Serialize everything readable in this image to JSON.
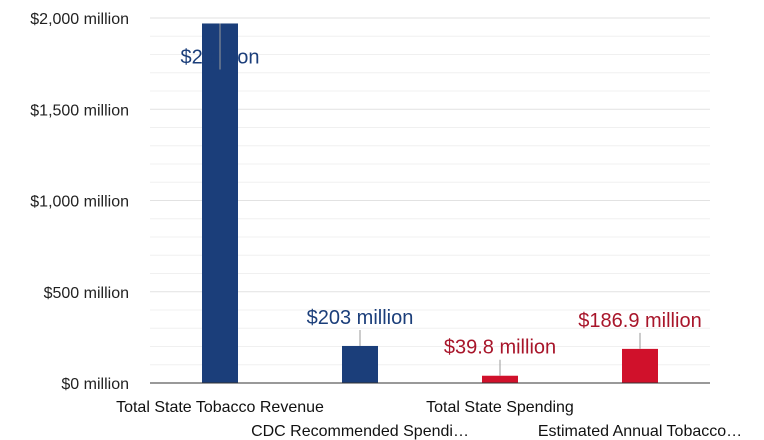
{
  "chart_data": {
    "type": "bar",
    "title": "",
    "xlabel": "",
    "ylabel": "",
    "ylim": [
      0,
      2000
    ],
    "y_ticks": [
      {
        "value": 0,
        "label": "$0 million"
      },
      {
        "value": 500,
        "label": "$500 million"
      },
      {
        "value": 1000,
        "label": "$1,000 million"
      },
      {
        "value": 1500,
        "label": "$1,500 million"
      },
      {
        "value": 2000,
        "label": "$2,000 million"
      }
    ],
    "grid": true,
    "legend": "none",
    "categories": [
      "Total State Tobacco Revenue",
      "CDC Recommended Spendi…",
      "Total State Spending",
      "Estimated Annual Tobacco…"
    ],
    "values": [
      1970,
      203,
      39.8,
      186.9
    ],
    "data_labels": [
      "$2 billion",
      "$203 million",
      "$39.8 million",
      "$186.9 million"
    ],
    "bar_colors": [
      "#1b3e7a",
      "#1b3e7a",
      "#d0112b",
      "#d0112b"
    ],
    "label_colors": [
      "#1b3e7a",
      "#1b3e7a",
      "#a8152a",
      "#a8152a"
    ]
  }
}
